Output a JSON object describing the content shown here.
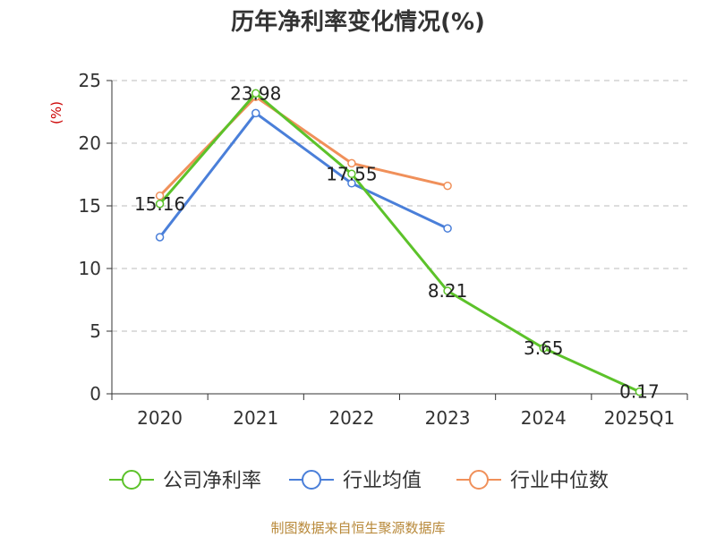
{
  "chart_data": {
    "type": "line",
    "title": "历年净利率变化情况(%)",
    "ylabel": "(%)",
    "categories": [
      "2020",
      "2021",
      "2022",
      "2023",
      "2024",
      "2025Q1"
    ],
    "ylim": [
      0,
      25
    ],
    "yticks": [
      "0",
      "5",
      "10",
      "15",
      "20",
      "25"
    ],
    "grid": true,
    "legend_position": "bottom",
    "series": [
      {
        "name": "公司净利率",
        "color": "#5cc22a",
        "values": [
          15.16,
          23.98,
          17.55,
          8.21,
          3.65,
          0.17
        ],
        "labels": [
          "15.16",
          "23.98",
          "17.55",
          "8.21",
          "3.65",
          "0.17"
        ]
      },
      {
        "name": "行业均值",
        "color": "#4a7fd9",
        "values": [
          12.5,
          22.4,
          16.8,
          13.2,
          null,
          null
        ]
      },
      {
        "name": "行业中位数",
        "color": "#f0905a",
        "values": [
          15.8,
          23.7,
          18.4,
          16.6,
          null,
          null
        ]
      }
    ]
  },
  "source": "制图数据来自恒生聚源数据库"
}
